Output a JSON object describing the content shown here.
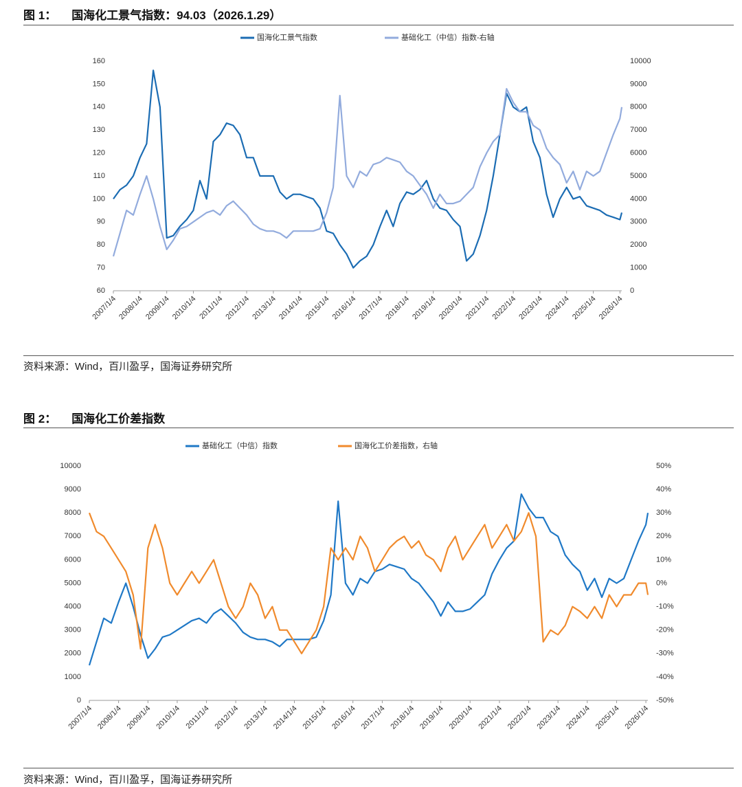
{
  "figures": [
    {
      "heading": "图 1：",
      "title": "国海化工景气指数：94.03（2026.1.29）",
      "source": "资料来源：Wind，百川盈孚，国海证券研究所"
    },
    {
      "heading": "图 2：",
      "title": "国海化工价差指数",
      "source": "资料来源：Wind，百川盈孚，国海证券研究所"
    }
  ],
  "chart_data": [
    {
      "type": "line",
      "x": [
        "2007/1/4",
        "2007/4/4",
        "2007/7/4",
        "2007/10/4",
        "2008/1/4",
        "2008/4/4",
        "2008/7/4",
        "2008/10/4",
        "2009/1/4",
        "2009/4/4",
        "2009/7/4",
        "2009/10/4",
        "2010/1/4",
        "2010/4/4",
        "2010/7/4",
        "2010/10/4",
        "2011/1/4",
        "2011/4/4",
        "2011/7/4",
        "2011/10/4",
        "2012/1/4",
        "2012/4/4",
        "2012/7/4",
        "2012/10/4",
        "2013/1/4",
        "2013/4/4",
        "2013/7/4",
        "2013/10/4",
        "2014/1/4",
        "2014/4/4",
        "2014/7/4",
        "2014/10/4",
        "2015/1/4",
        "2015/4/4",
        "2015/7/4",
        "2015/10/4",
        "2016/1/4",
        "2016/4/4",
        "2016/7/4",
        "2016/10/4",
        "2017/1/4",
        "2017/4/4",
        "2017/7/4",
        "2017/10/4",
        "2018/1/4",
        "2018/4/4",
        "2018/7/4",
        "2018/10/4",
        "2019/1/4",
        "2019/4/4",
        "2019/7/4",
        "2019/10/4",
        "2020/1/4",
        "2020/4/4",
        "2020/7/4",
        "2020/10/4",
        "2021/1/4",
        "2021/4/4",
        "2021/7/4",
        "2021/10/4",
        "2022/1/4",
        "2022/4/4",
        "2022/7/4",
        "2022/10/4",
        "2023/1/4",
        "2023/4/4",
        "2023/7/4",
        "2023/10/4",
        "2024/1/4",
        "2024/4/4",
        "2024/7/4",
        "2024/10/4",
        "2025/1/4",
        "2025/4/4",
        "2025/7/4",
        "2025/10/4",
        "2026/1/4",
        "2026/1/29"
      ],
      "series": [
        {
          "name": "国海化工景气指数",
          "color": "#1b6cb3",
          "values": [
            100,
            104,
            106,
            110,
            118,
            124,
            156,
            140,
            83,
            84,
            88,
            91,
            95,
            108,
            100,
            125,
            128,
            133,
            132,
            128,
            118,
            118,
            110,
            110,
            110,
            103,
            100,
            102,
            102,
            101,
            100,
            96,
            86,
            85,
            80,
            76,
            70,
            73,
            75,
            80,
            88,
            95,
            88,
            98,
            103,
            102,
            104,
            108,
            100,
            96,
            95,
            91,
            88,
            73,
            76,
            84,
            95,
            110,
            128,
            146,
            140,
            138,
            140,
            125,
            118,
            102,
            92,
            100,
            105,
            100,
            101,
            97,
            96,
            95,
            93,
            92,
            91,
            94.03
          ]
        },
        {
          "name": "基础化工（中信）指数-右轴",
          "color": "#92abdd",
          "axis": "y2",
          "values": [
            1500,
            2500,
            3500,
            3300,
            4200,
            5000,
            4000,
            2800,
            1800,
            2200,
            2700,
            2800,
            3000,
            3200,
            3400,
            3500,
            3300,
            3700,
            3900,
            3600,
            3300,
            2900,
            2700,
            2600,
            2600,
            2500,
            2300,
            2600,
            2600,
            2600,
            2600,
            2700,
            3400,
            4500,
            8500,
            5000,
            4500,
            5200,
            5000,
            5500,
            5600,
            5800,
            5700,
            5600,
            5200,
            5000,
            4600,
            4200,
            3600,
            4200,
            3800,
            3800,
            3900,
            4200,
            4500,
            5400,
            6000,
            6500,
            6800,
            8800,
            8200,
            7800,
            7800,
            7200,
            7000,
            6200,
            5800,
            5500,
            4700,
            5200,
            4400,
            5200,
            5000,
            5200,
            6000,
            6800,
            7500,
            8000
          ]
        }
      ],
      "xlim": [
        "2007/1/4",
        "2026/1/29"
      ],
      "xticks": [
        "2007/1/4",
        "2008/1/4",
        "2009/1/4",
        "2010/1/4",
        "2011/1/4",
        "2012/1/4",
        "2013/1/4",
        "2014/1/4",
        "2015/1/4",
        "2016/1/4",
        "2017/1/4",
        "2018/1/4",
        "2019/1/4",
        "2020/1/4",
        "2021/1/4",
        "2022/1/4",
        "2023/1/4",
        "2024/1/4",
        "2025/1/4",
        "2026/1/4"
      ],
      "ylim": [
        60,
        160
      ],
      "yticks": [
        60,
        70,
        80,
        90,
        100,
        110,
        120,
        130,
        140,
        150,
        160
      ],
      "y2lim": [
        0,
        10000
      ],
      "y2ticks": [
        0,
        1000,
        2000,
        3000,
        4000,
        5000,
        6000,
        7000,
        8000,
        9000,
        10000
      ],
      "legend": "top"
    },
    {
      "type": "line",
      "x": [
        "2007/1/4",
        "2007/4/4",
        "2007/7/4",
        "2007/10/4",
        "2008/1/4",
        "2008/4/4",
        "2008/7/4",
        "2008/10/4",
        "2009/1/4",
        "2009/4/4",
        "2009/7/4",
        "2009/10/4",
        "2010/1/4",
        "2010/4/4",
        "2010/7/4",
        "2010/10/4",
        "2011/1/4",
        "2011/4/4",
        "2011/7/4",
        "2011/10/4",
        "2012/1/4",
        "2012/4/4",
        "2012/7/4",
        "2012/10/4",
        "2013/1/4",
        "2013/4/4",
        "2013/7/4",
        "2013/10/4",
        "2014/1/4",
        "2014/4/4",
        "2014/7/4",
        "2014/10/4",
        "2015/1/4",
        "2015/4/4",
        "2015/7/4",
        "2015/10/4",
        "2016/1/4",
        "2016/4/4",
        "2016/7/4",
        "2016/10/4",
        "2017/1/4",
        "2017/4/4",
        "2017/7/4",
        "2017/10/4",
        "2018/1/4",
        "2018/4/4",
        "2018/7/4",
        "2018/10/4",
        "2019/1/4",
        "2019/4/4",
        "2019/7/4",
        "2019/10/4",
        "2020/1/4",
        "2020/4/4",
        "2020/7/4",
        "2020/10/4",
        "2021/1/4",
        "2021/4/4",
        "2021/7/4",
        "2021/10/4",
        "2022/1/4",
        "2022/4/4",
        "2022/7/4",
        "2022/10/4",
        "2023/1/4",
        "2023/4/4",
        "2023/7/4",
        "2023/10/4",
        "2024/1/4",
        "2024/4/4",
        "2024/7/4",
        "2024/10/4",
        "2025/1/4",
        "2025/4/4",
        "2025/7/4",
        "2025/10/4",
        "2026/1/4",
        "2026/1/29"
      ],
      "series": [
        {
          "name": "基础化工（中信）指数",
          "color": "#1f78c6",
          "values": [
            1500,
            2500,
            3500,
            3300,
            4200,
            5000,
            4000,
            2800,
            1800,
            2200,
            2700,
            2800,
            3000,
            3200,
            3400,
            3500,
            3300,
            3700,
            3900,
            3600,
            3300,
            2900,
            2700,
            2600,
            2600,
            2500,
            2300,
            2600,
            2600,
            2600,
            2600,
            2700,
            3400,
            4500,
            8500,
            5000,
            4500,
            5200,
            5000,
            5500,
            5600,
            5800,
            5700,
            5600,
            5200,
            5000,
            4600,
            4200,
            3600,
            4200,
            3800,
            3800,
            3900,
            4200,
            4500,
            5400,
            6000,
            6500,
            6800,
            8800,
            8200,
            7800,
            7800,
            7200,
            7000,
            6200,
            5800,
            5500,
            4700,
            5200,
            4400,
            5200,
            5000,
            5200,
            6000,
            6800,
            7500,
            8000
          ]
        },
        {
          "name": "国海化工价差指数，右轴",
          "color": "#f08a2c",
          "axis": "y2",
          "values": [
            30,
            22,
            20,
            15,
            10,
            5,
            -5,
            -28,
            15,
            25,
            15,
            0,
            -5,
            0,
            5,
            0,
            5,
            10,
            0,
            -10,
            -15,
            -10,
            0,
            -5,
            -15,
            -10,
            -20,
            -20,
            -25,
            -30,
            -25,
            -20,
            -10,
            15,
            10,
            15,
            10,
            20,
            15,
            5,
            10,
            15,
            18,
            20,
            15,
            18,
            12,
            10,
            5,
            15,
            20,
            10,
            15,
            20,
            25,
            15,
            20,
            25,
            18,
            22,
            30,
            20,
            -25,
            -20,
            -22,
            -18,
            -10,
            -12,
            -15,
            -10,
            -15,
            -5,
            -10,
            -5,
            -5,
            0,
            0,
            -5
          ]
        }
      ],
      "xlim": [
        "2007/1/4",
        "2026/1/29"
      ],
      "xticks": [
        "2007/1/4",
        "2008/1/4",
        "2009/1/4",
        "2010/1/4",
        "2011/1/4",
        "2012/1/4",
        "2013/1/4",
        "2014/1/4",
        "2015/1/4",
        "2016/1/4",
        "2017/1/4",
        "2018/1/4",
        "2019/1/4",
        "2020/1/4",
        "2021/1/4",
        "2022/1/4",
        "2023/1/4",
        "2024/1/4",
        "2025/1/4",
        "2026/1/4"
      ],
      "ylim": [
        0,
        10000
      ],
      "yticks": [
        0,
        1000,
        2000,
        3000,
        4000,
        5000,
        6000,
        7000,
        8000,
        9000,
        10000
      ],
      "y2lim": [
        -50,
        50
      ],
      "y2ticks": [
        {
          "value": -50,
          "label": "-50%"
        },
        {
          "value": -40,
          "label": "-40%"
        },
        {
          "value": -30,
          "label": "-30%"
        },
        {
          "value": -20,
          "label": "-20%"
        },
        {
          "value": -10,
          "label": "-10%"
        },
        {
          "value": 0,
          "label": "0%"
        },
        {
          "value": 10,
          "label": "10%"
        },
        {
          "value": 20,
          "label": "20%"
        },
        {
          "value": 30,
          "label": "30%"
        },
        {
          "value": 40,
          "label": "40%"
        },
        {
          "value": 50,
          "label": "50%"
        }
      ],
      "legend": "top"
    }
  ]
}
